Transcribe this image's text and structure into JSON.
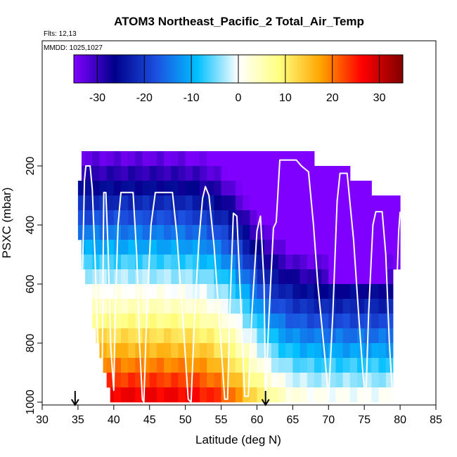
{
  "chart_data": {
    "type": "heatmap",
    "title": "ATOM3 Northeast_Pacific_2 Total_Air_Temp",
    "flights_label": "Flts: 12,13",
    "dates_label": "MMDD: 1025,1027",
    "xlabel": "Latitude (deg N)",
    "ylabel": "PSXC (mbar)",
    "xlim": [
      30,
      85
    ],
    "ylim": [
      1000,
      50
    ],
    "y_reversed": true,
    "x_ticks": [
      "30",
      "35",
      "40",
      "45",
      "50",
      "55",
      "60",
      "65",
      "70",
      "75",
      "80",
      "85"
    ],
    "y_ticks": [
      "200",
      "400",
      "600",
      "800",
      "1000"
    ],
    "colorbar": {
      "min": -35,
      "max": 35,
      "ticks": [
        "-30",
        "-20",
        "-10",
        "0",
        "10",
        "20",
        "30"
      ],
      "colors": [
        "#8000ff",
        "#00008b",
        "#1c50e0",
        "#00bfff",
        "#ffffff",
        "#ffff80",
        "#ffa500",
        "#ff0000",
        "#800000"
      ]
    },
    "pressure_levels": [
      175,
      225,
      275,
      325,
      375,
      425,
      475,
      525,
      575,
      625,
      675,
      725,
      775,
      825,
      875,
      925,
      975
    ],
    "lat_bins": [
      35,
      36,
      37,
      38,
      39,
      40,
      41,
      42,
      43,
      44,
      45,
      46,
      47,
      48,
      49,
      50,
      51,
      52,
      53,
      54,
      55,
      56,
      57,
      58,
      59,
      60,
      61,
      62,
      63,
      64,
      65,
      66,
      67,
      68,
      69,
      70,
      71,
      72,
      73,
      74,
      75,
      76,
      77,
      78,
      79
    ],
    "bin_width_deg": 1,
    "temperature_model": {
      "description": "Total air temperature (deg C) in each 1-degree latitude by 50 mbar bin, read from the colour scale",
      "surface_temp_south": 29,
      "surface_temp_north": 2,
      "lapse_per_100mbar": 7.5,
      "transition_lat": 59,
      "transition_width": 5
    },
    "coverage": [
      {
        "p": 175,
        "lat_min": 35.5,
        "lat_max": 68
      },
      {
        "p": 225,
        "lat_min": 35.5,
        "lat_max": 73
      },
      {
        "p": 275,
        "lat_min": 35,
        "lat_max": 76
      },
      {
        "p": 325,
        "lat_min": 35,
        "lat_max": 80
      },
      {
        "p": 375,
        "lat_min": 35,
        "lat_max": 80
      },
      {
        "p": 425,
        "lat_min": 35,
        "lat_max": 80
      },
      {
        "p": 475,
        "lat_min": 35.5,
        "lat_max": 80
      },
      {
        "p": 525,
        "lat_min": 35.5,
        "lat_max": 80
      },
      {
        "p": 575,
        "lat_min": 36,
        "lat_max": 79
      },
      {
        "p": 625,
        "lat_min": 36.5,
        "lat_max": 79
      },
      {
        "p": 675,
        "lat_min": 37,
        "lat_max": 79
      },
      {
        "p": 725,
        "lat_min": 37,
        "lat_max": 79
      },
      {
        "p": 775,
        "lat_min": 37.5,
        "lat_max": 79
      },
      {
        "p": 825,
        "lat_min": 38,
        "lat_max": 79
      },
      {
        "p": 875,
        "lat_min": 38.5,
        "lat_max": 79
      },
      {
        "p": 925,
        "lat_min": 39,
        "lat_max": 79
      },
      {
        "p": 975,
        "lat_min": 39.5,
        "lat_max": 79
      }
    ],
    "flight_track": [
      [
        34.9,
        1000
      ],
      [
        35.3,
        900
      ],
      [
        35.6,
        600
      ],
      [
        35.9,
        250
      ],
      [
        36.1,
        200
      ],
      [
        36.7,
        200
      ],
      [
        37.0,
        280
      ],
      [
        37.4,
        520
      ],
      [
        37.8,
        830
      ],
      [
        38.2,
        1000
      ],
      [
        38.4,
        850
      ],
      [
        38.6,
        290
      ],
      [
        38.9,
        290
      ],
      [
        39.2,
        480
      ],
      [
        39.6,
        820
      ],
      [
        40.0,
        960
      ],
      [
        40.2,
        700
      ],
      [
        40.6,
        400
      ],
      [
        41.0,
        290
      ],
      [
        42.7,
        290
      ],
      [
        43.2,
        500
      ],
      [
        43.6,
        800
      ],
      [
        44.0,
        990
      ],
      [
        44.2,
        1000
      ],
      [
        44.6,
        700
      ],
      [
        45.2,
        400
      ],
      [
        45.8,
        290
      ],
      [
        48.2,
        290
      ],
      [
        48.8,
        430
      ],
      [
        49.6,
        700
      ],
      [
        50.4,
        990
      ],
      [
        50.8,
        1000
      ],
      [
        51.3,
        700
      ],
      [
        51.9,
        450
      ],
      [
        52.4,
        310
      ],
      [
        52.8,
        270
      ],
      [
        53.3,
        300
      ],
      [
        54.0,
        470
      ],
      [
        54.8,
        740
      ],
      [
        55.5,
        990
      ],
      [
        55.9,
        990
      ],
      [
        56.2,
        700
      ],
      [
        56.7,
        360
      ],
      [
        57.2,
        370
      ],
      [
        57.8,
        700
      ],
      [
        58.3,
        980
      ],
      [
        58.8,
        980
      ],
      [
        59.3,
        700
      ],
      [
        60.0,
        420
      ],
      [
        60.5,
        370
      ],
      [
        61.0,
        600
      ],
      [
        61.2,
        980
      ],
      [
        61.7,
        700
      ],
      [
        62.3,
        410
      ],
      [
        62.7,
        390
      ],
      [
        63.2,
        180
      ],
      [
        65.5,
        180
      ],
      [
        66.2,
        200
      ],
      [
        67.2,
        220
      ],
      [
        67.9,
        400
      ],
      [
        68.5,
        600
      ],
      [
        69.5,
        850
      ],
      [
        70.0,
        990
      ],
      [
        70.6,
        700
      ],
      [
        71.2,
        320
      ],
      [
        71.6,
        225
      ],
      [
        72.6,
        225
      ],
      [
        73.5,
        450
      ],
      [
        74.2,
        700
      ],
      [
        74.8,
        900
      ],
      [
        75.2,
        1000
      ],
      [
        75.6,
        700
      ],
      [
        76.2,
        400
      ],
      [
        76.6,
        355
      ],
      [
        77.5,
        355
      ],
      [
        78.0,
        500
      ],
      [
        78.5,
        800
      ],
      [
        79.0,
        1000
      ],
      [
        79.2,
        990
      ],
      [
        79.4,
        700
      ],
      [
        79.8,
        420
      ],
      [
        80.0,
        355
      ]
    ],
    "markers": [
      {
        "lat": 34.6,
        "symbol": "down-arrow"
      },
      {
        "lat": 61.2,
        "symbol": "down-arrow"
      }
    ]
  }
}
